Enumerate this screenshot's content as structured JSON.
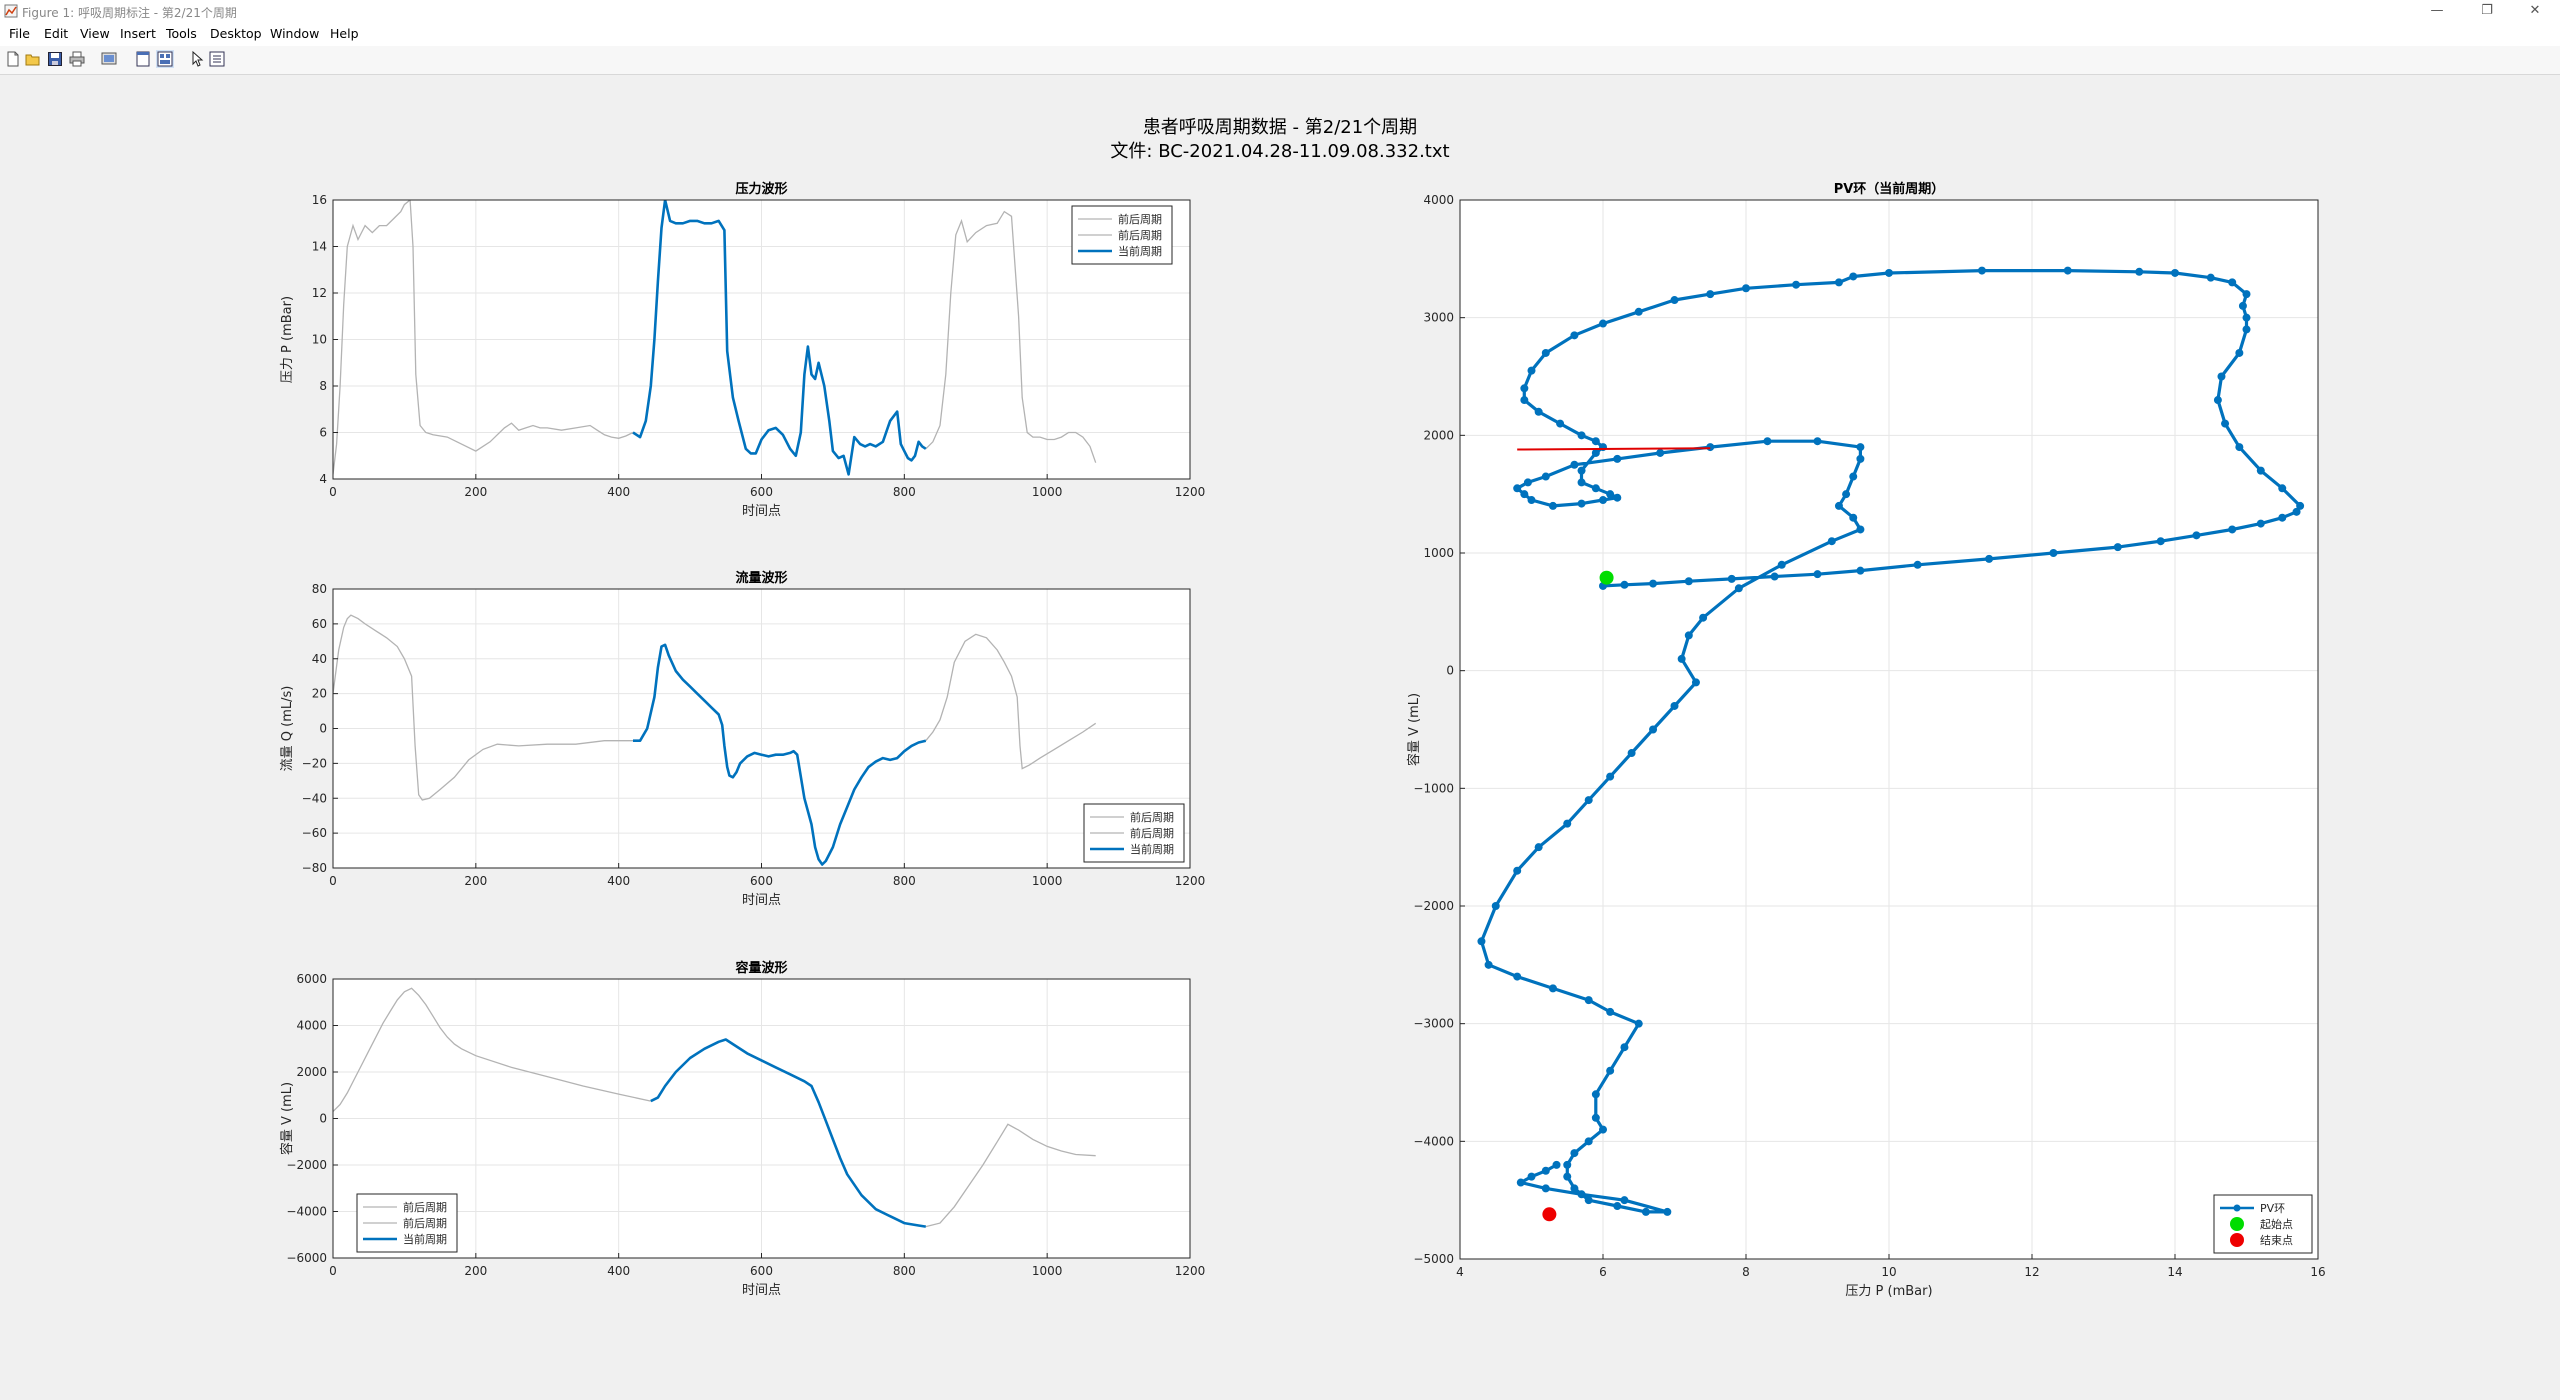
{
  "window": {
    "title": "Figure 1: 呼吸周期标注 - 第2/21个周期",
    "controls": {
      "minimize": "—",
      "restore": "❐",
      "close": "✕"
    }
  },
  "menu": [
    "File",
    "Edit",
    "View",
    "Insert",
    "Tools",
    "Desktop",
    "Window",
    "Help"
  ],
  "toolbar": [
    "new-figure-icon",
    "open-file-icon",
    "save-icon",
    "print-icon",
    "print-preview-icon",
    "dock-icon",
    "tile-icon",
    "pointer-icon",
    "property-editor-icon"
  ],
  "figure": {
    "title_line1": "患者呼吸周期数据 - 第2/21个周期",
    "title_line2": "文件: BC-2021.04.28-11.09.08.332.txt"
  },
  "colors": {
    "current": "#0072bd",
    "context": "#b3b3b3",
    "marker_line": "#e00000",
    "start": "#00dd00",
    "end": "#ee0000"
  },
  "chart_data": [
    {
      "type": "line",
      "title": "压力波形",
      "xlabel": "时间点",
      "ylabel": "压力 P (mBar)",
      "xlim": [
        0,
        1200
      ],
      "ylim": [
        4,
        16
      ],
      "xticks": [
        0,
        200,
        400,
        600,
        800,
        1000,
        1200
      ],
      "yticks": [
        4,
        6,
        8,
        10,
        12,
        14,
        16
      ],
      "grid": true,
      "legend_position": "top-right",
      "series": [
        {
          "name": "前后周期",
          "role": "context",
          "x": [
            0,
            5,
            10,
            15,
            20,
            28,
            35,
            45,
            55,
            65,
            75,
            85,
            95,
            100,
            108,
            112,
            116,
            122,
            130,
            140,
            160,
            180,
            200,
            220,
            240,
            250,
            260,
            270,
            280,
            290,
            300,
            320,
            340,
            360,
            370,
            380,
            390,
            400,
            410,
            420
          ],
          "y": [
            4.2,
            5.5,
            8,
            11.5,
            14,
            14.9,
            14.3,
            14.9,
            14.6,
            14.9,
            14.9,
            15.2,
            15.5,
            15.8,
            16,
            14,
            8.5,
            6.3,
            6,
            5.9,
            5.8,
            5.5,
            5.2,
            5.6,
            6.2,
            6.4,
            6.1,
            6.2,
            6.3,
            6.2,
            6.2,
            6.1,
            6.2,
            6.3,
            6.1,
            5.9,
            5.8,
            5.75,
            5.85,
            6
          ]
        },
        {
          "name": "前后周期",
          "role": "context",
          "x": [
            830,
            840,
            850,
            858,
            865,
            872,
            880,
            888,
            900,
            915,
            930,
            940,
            950,
            960,
            965,
            972,
            980,
            990,
            1000,
            1010,
            1020,
            1030,
            1040,
            1050,
            1060,
            1068
          ],
          "y": [
            5.3,
            5.6,
            6.3,
            8.5,
            12,
            14.5,
            15.1,
            14.2,
            14.6,
            14.9,
            15,
            15.5,
            15.3,
            11,
            7.5,
            6,
            5.8,
            5.8,
            5.7,
            5.7,
            5.8,
            6,
            6,
            5.8,
            5.4,
            4.7
          ]
        },
        {
          "name": "当前周期",
          "role": "current",
          "x": [
            420,
            430,
            438,
            445,
            450,
            455,
            460,
            465,
            472,
            480,
            490,
            500,
            510,
            520,
            530,
            540,
            548,
            552,
            560,
            568,
            578,
            585,
            592,
            600,
            610,
            620,
            630,
            640,
            648,
            655,
            660,
            665,
            670,
            675,
            680,
            688,
            695,
            700,
            708,
            715,
            722,
            730,
            738,
            745,
            752,
            760,
            770,
            780,
            790,
            795,
            800,
            805,
            810,
            815,
            820,
            825,
            830
          ],
          "y": [
            6,
            5.8,
            6.5,
            8,
            10,
            12.5,
            14.8,
            16,
            15.1,
            15,
            15,
            15.1,
            15.1,
            15,
            15,
            15.1,
            14.7,
            9.5,
            7.5,
            6.5,
            5.3,
            5.1,
            5.1,
            5.7,
            6.1,
            6.2,
            5.9,
            5.3,
            5,
            6,
            8.5,
            9.7,
            8.5,
            8.3,
            9,
            8,
            6.5,
            5.2,
            4.9,
            5,
            4.2,
            5.8,
            5.5,
            5.4,
            5.5,
            5.4,
            5.6,
            6.5,
            6.9,
            5.5,
            5.2,
            4.9,
            4.8,
            5,
            5.6,
            5.4,
            5.3
          ]
        }
      ]
    },
    {
      "type": "line",
      "title": "流量波形",
      "xlabel": "时间点",
      "ylabel": "流量 Q (mL/s)",
      "xlim": [
        0,
        1200
      ],
      "ylim": [
        -80,
        80
      ],
      "xticks": [
        0,
        200,
        400,
        600,
        800,
        1000,
        1200
      ],
      "yticks": [
        -80,
        -60,
        -40,
        -20,
        0,
        20,
        40,
        60,
        80
      ],
      "grid": true,
      "legend_position": "bottom-right",
      "series": [
        {
          "name": "前后周期",
          "role": "context",
          "x": [
            0,
            8,
            15,
            20,
            25,
            35,
            45,
            60,
            75,
            90,
            100,
            110,
            115,
            120,
            125,
            135,
            150,
            170,
            190,
            210,
            230,
            260,
            300,
            340,
            380,
            420
          ],
          "y": [
            20,
            45,
            58,
            63,
            65,
            63,
            60,
            56,
            52,
            47,
            40,
            30,
            -10,
            -38,
            -41,
            -40,
            -35,
            -28,
            -18,
            -12,
            -9,
            -10,
            -9,
            -9,
            -7,
            -7
          ]
        },
        {
          "name": "前后周期",
          "role": "context",
          "x": [
            830,
            840,
            850,
            860,
            870,
            885,
            900,
            915,
            930,
            940,
            950,
            958,
            962,
            965,
            975,
            990,
            1010,
            1030,
            1050,
            1068
          ],
          "y": [
            -7,
            -2,
            5,
            18,
            38,
            50,
            54,
            52,
            45,
            38,
            30,
            18,
            -10,
            -23,
            -21,
            -17,
            -12,
            -7,
            -2,
            3
          ]
        },
        {
          "name": "当前周期",
          "role": "current",
          "x": [
            420,
            430,
            440,
            450,
            455,
            460,
            465,
            470,
            480,
            490,
            500,
            510,
            520,
            530,
            540,
            545,
            548,
            552,
            555,
            560,
            565,
            570,
            580,
            590,
            600,
            610,
            620,
            630,
            640,
            645,
            650,
            660,
            670,
            675,
            680,
            685,
            690,
            700,
            710,
            720,
            730,
            740,
            750,
            760,
            770,
            780,
            790,
            800,
            810,
            820,
            830
          ],
          "y": [
            -7,
            -7,
            0,
            18,
            35,
            47,
            48,
            42,
            33,
            28,
            24,
            20,
            16,
            12,
            8,
            2,
            -10,
            -22,
            -27,
            -28,
            -25,
            -20,
            -16,
            -14,
            -15,
            -16,
            -15,
            -15,
            -14,
            -13,
            -15,
            -40,
            -55,
            -68,
            -75,
            -78,
            -76,
            -68,
            -55,
            -45,
            -35,
            -28,
            -22,
            -19,
            -17,
            -18,
            -17,
            -13,
            -10,
            -8,
            -7
          ]
        }
      ]
    },
    {
      "type": "line",
      "title": "容量波形",
      "xlabel": "时间点",
      "ylabel": "容量 V (mL)",
      "xlim": [
        0,
        1200
      ],
      "ylim": [
        -6000,
        6000
      ],
      "xticks": [
        0,
        200,
        400,
        600,
        800,
        1000,
        1200
      ],
      "yticks": [
        -6000,
        -4000,
        -2000,
        0,
        2000,
        4000,
        6000
      ],
      "grid": true,
      "legend_position": "bottom-left",
      "series": [
        {
          "name": "前后周期",
          "role": "context",
          "x": [
            0,
            10,
            20,
            30,
            40,
            50,
            60,
            70,
            80,
            90,
            100,
            110,
            120,
            130,
            140,
            150,
            160,
            170,
            180,
            200,
            250,
            300,
            350,
            400,
            445
          ],
          "y": [
            300,
            600,
            1100,
            1700,
            2300,
            2900,
            3500,
            4100,
            4600,
            5100,
            5450,
            5600,
            5300,
            4900,
            4400,
            3900,
            3500,
            3200,
            3000,
            2700,
            2200,
            1800,
            1400,
            1050,
            750
          ]
        },
        {
          "name": "前后周期",
          "role": "context",
          "x": [
            830,
            850,
            870,
            890,
            910,
            930,
            945,
            960,
            980,
            1000,
            1020,
            1040,
            1068
          ],
          "y": [
            -4650,
            -4500,
            -3800,
            -2900,
            -2000,
            -1000,
            -250,
            -500,
            -900,
            -1200,
            -1400,
            -1550,
            -1600
          ]
        },
        {
          "name": "当前周期",
          "role": "current",
          "x": [
            445,
            455,
            465,
            480,
            500,
            520,
            540,
            550,
            560,
            580,
            600,
            620,
            640,
            660,
            670,
            680,
            690,
            700,
            710,
            720,
            740,
            760,
            780,
            800,
            820,
            830
          ],
          "y": [
            750,
            900,
            1400,
            2000,
            2600,
            3000,
            3300,
            3400,
            3200,
            2800,
            2500,
            2200,
            1900,
            1600,
            1400,
            700,
            -100,
            -900,
            -1700,
            -2400,
            -3300,
            -3900,
            -4200,
            -4500,
            -4600,
            -4650
          ]
        }
      ]
    },
    {
      "type": "scatter",
      "title": "PV环（当前周期）",
      "xlabel": "压力 P (mBar)",
      "ylabel": "容量 V (mL)",
      "xlim": [
        4,
        16
      ],
      "ylim": [
        -5000,
        4000
      ],
      "xticks": [
        4,
        6,
        8,
        10,
        12,
        14,
        16
      ],
      "yticks": [
        -5000,
        -4000,
        -3000,
        -2000,
        -1000,
        0,
        1000,
        2000,
        3000,
        4000
      ],
      "grid": true,
      "legend_position": "bottom-right",
      "series": [
        {
          "name": "PV环",
          "role": "current",
          "x": [
            6,
            6.3,
            6.7,
            7.2,
            7.8,
            8.4,
            9,
            9.6,
            10.4,
            11.4,
            12.3,
            13.2,
            13.8,
            14.3,
            14.8,
            15.2,
            15.5,
            15.7,
            15.75,
            15.5,
            15.2,
            14.9,
            14.7,
            14.6,
            14.65,
            14.9,
            15,
            15,
            14.95,
            15,
            14.8,
            14.5,
            14,
            13.5,
            12.5,
            11.3,
            10,
            9.5,
            9.3,
            8.7,
            8,
            7.5,
            7,
            6.5,
            6,
            5.6,
            5.2,
            5,
            4.9,
            4.9,
            5.1,
            5.4,
            5.7,
            5.9,
            6,
            5.9,
            5.7,
            5.7,
            5.9,
            6.1,
            6.2,
            6,
            5.7,
            5.3,
            5,
            4.9,
            4.8,
            4.95,
            5.2,
            5.6,
            6.2,
            6.8,
            7.5,
            8.3,
            9,
            9.6,
            9.6,
            9.5,
            9.4,
            9.3,
            9.5,
            9.6,
            9.2,
            8.5,
            7.9,
            7.4,
            7.2,
            7.1,
            7.3,
            7,
            6.7,
            6.4,
            6.1,
            5.8,
            5.5,
            5.1,
            4.8,
            4.5,
            4.3,
            4.4,
            4.8,
            5.3,
            5.8,
            6.1,
            6.5,
            6.3,
            6.1,
            5.9,
            5.9,
            6,
            5.8,
            5.6,
            5.5,
            5.5,
            5.6,
            5.8,
            6.2,
            6.6,
            6.9,
            6.3,
            5.7,
            5.2,
            4.85,
            5,
            5.2,
            5.35
          ],
          "y": [
            720,
            730,
            740,
            760,
            780,
            800,
            820,
            850,
            900,
            950,
            1000,
            1050,
            1100,
            1150,
            1200,
            1250,
            1300,
            1350,
            1400,
            1550,
            1700,
            1900,
            2100,
            2300,
            2500,
            2700,
            2900,
            3000,
            3100,
            3200,
            3300,
            3340,
            3380,
            3390,
            3400,
            3400,
            3380,
            3350,
            3300,
            3280,
            3250,
            3200,
            3150,
            3050,
            2950,
            2850,
            2700,
            2550,
            2400,
            2300,
            2200,
            2100,
            2000,
            1950,
            1900,
            1850,
            1700,
            1600,
            1550,
            1500,
            1470,
            1450,
            1420,
            1400,
            1450,
            1500,
            1550,
            1600,
            1650,
            1750,
            1800,
            1850,
            1900,
            1950,
            1950,
            1900,
            1800,
            1650,
            1500,
            1400,
            1300,
            1200,
            1100,
            900,
            700,
            450,
            300,
            100,
            -100,
            -300,
            -500,
            -700,
            -900,
            -1100,
            -1300,
            -1500,
            -1700,
            -2000,
            -2300,
            -2500,
            -2600,
            -2700,
            -2800,
            -2900,
            -3000,
            -3200,
            -3400,
            -3600,
            -3800,
            -3900,
            -4000,
            -4100,
            -4200,
            -4300,
            -4400,
            -4500,
            -4550,
            -4600,
            -4600,
            -4500,
            -4450,
            -4400,
            -4350,
            -4300,
            -4250,
            -4200
          ]
        },
        {
          "name": "起始点",
          "role": "start",
          "x": [
            6.05
          ],
          "y": [
            790
          ]
        },
        {
          "name": "结束点",
          "role": "end",
          "x": [
            5.25
          ],
          "y": [
            -4620
          ]
        },
        {
          "name": "",
          "role": "marker_line",
          "x": [
            4.8,
            7.5
          ],
          "y": [
            1880,
            1890
          ]
        }
      ]
    }
  ]
}
